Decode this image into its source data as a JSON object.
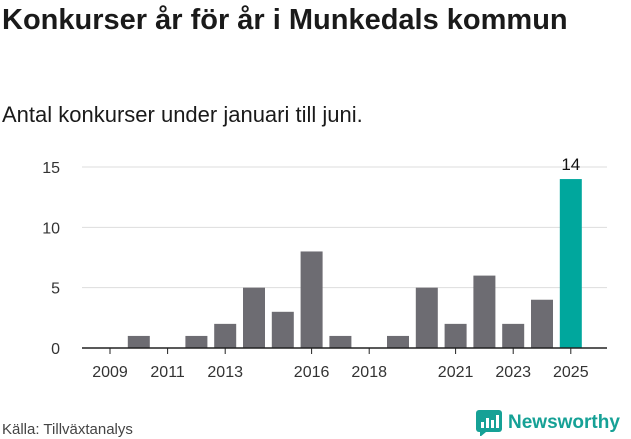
{
  "title": "Konkurser år för år i Munkedals kommun",
  "subtitle": "Antal konkurser under januari till juni.",
  "source": "Källa: Tillväxtanalys",
  "brand": {
    "name": "Newsworthy",
    "icon": "newsworthy-logo-icon",
    "color": "#16a196"
  },
  "colors": {
    "bar": "#6d6c72",
    "highlight": "#00a79d",
    "grid": "#dddddd"
  },
  "chart_data": {
    "type": "bar",
    "title": "Konkurser år för år i Munkedals kommun",
    "subtitle": "Antal konkurser under januari till juni.",
    "xlabel": "",
    "ylabel": "",
    "categories": [
      "2009",
      "2010",
      "2011",
      "2012",
      "2013",
      "2014",
      "2015",
      "2016",
      "2017",
      "2018",
      "2019",
      "2020",
      "2021",
      "2022",
      "2023",
      "2024",
      "2025"
    ],
    "values": [
      0,
      1,
      0,
      1,
      2,
      5,
      3,
      8,
      1,
      0,
      1,
      5,
      2,
      6,
      2,
      4,
      14
    ],
    "highlight": {
      "category": "2025",
      "label": "14"
    },
    "x_tick_labels": [
      "2009",
      "2011",
      "2013",
      "2016",
      "2018",
      "2021",
      "2023",
      "2025"
    ],
    "y_ticks": [
      0,
      5,
      10,
      15
    ],
    "ylim": [
      0,
      15
    ],
    "grid": true,
    "legend": "none"
  }
}
